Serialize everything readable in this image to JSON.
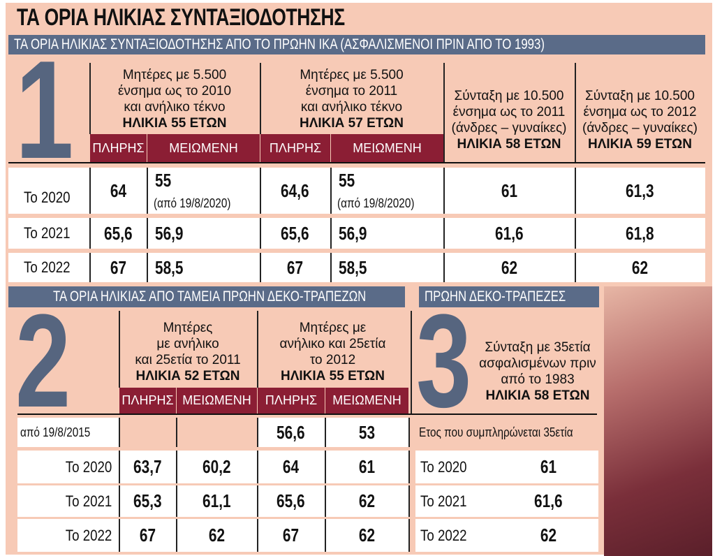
{
  "title": "ΤΑ ΟΡΙΑ ΗΛΙΚΙΑΣ ΣΥΝΤΑΞΙΟΔΟΤΗΣΗΣ",
  "colors": {
    "background": "#f7cab6",
    "bar": "#5a6b88",
    "accent": "#8b1e34",
    "numeral": "#56657f"
  },
  "s1": {
    "banner": "ΤΑ ΟΡΙΑ ΗΛΙΚΙΑΣ ΣΥΝΤΑΞΙΟΔΟΤΗΣΗΣ ΑΠΟ ΤΟ ΠΡΩΗΝ ΙΚΑ (ΑΣΦΑΛΙΣΜΕΝΟΙ ΠΡΙΝ ΑΠΟ ΤΟ 1993)",
    "numeral": "1",
    "groups": [
      {
        "l1": "Μητέρες με 5.500",
        "l2": "ένσημα ως το 2010",
        "l3": "και ανήλικο τέκνο",
        "age": "ΗΛΙΚΙΑ 55 ΕΤΩΝ"
      },
      {
        "l1": "Μητέρες με 5.500",
        "l2": "ένσημα το 2011",
        "l3": "και ανήλικο τέκνο",
        "age": "ΗΛΙΚΙΑ 57 ΕΤΩΝ"
      },
      {
        "l1": "Σύνταξη με 10.500",
        "l2": "ένσημα ως το 2011",
        "l3": "(άνδρες – γυναίκες)",
        "age": "ΗΛΙΚΙΑ 58 ΕΤΩΝ"
      },
      {
        "l1": "Σύνταξη με 10.500",
        "l2": "ένσημα ως το 2012",
        "l3": "(άνδρες – γυναίκες)",
        "age": "ΗΛΙΚΙΑ 59 ΕΤΩΝ"
      }
    ],
    "sub": [
      "ΠΛΗΡΗΣ",
      "ΜΕΙΩΜΕΝΗ",
      "ΠΛΗΡΗΣ",
      "ΜΕΙΩΜΕΝΗ"
    ],
    "rows": [
      {
        "label": "Το 2020",
        "v": [
          "64",
          "55",
          "64,6",
          "55",
          "61",
          "61,3"
        ],
        "note": "(από 19/8/2020)"
      },
      {
        "label": "Το 2021",
        "v": [
          "65,6",
          "56,9",
          "65,6",
          "56,9",
          "61,6",
          "61,8"
        ]
      },
      {
        "label": "Το 2022",
        "v": [
          "67",
          "58,5",
          "67",
          "58,5",
          "62",
          "62"
        ]
      }
    ]
  },
  "s2": {
    "banner": "ΤΑ ΟΡΙΑ ΗΛΙΚΙΑΣ ΑΠΟ ΤΑΜΕΙΑ ΠΡΩΗΝ ΔΕΚΟ-ΤΡΑΠΕΖΩΝ",
    "numeral": "2",
    "groups": [
      {
        "l1": "Μητέρες",
        "l2": "με ανήλικο",
        "l3": "και 25ετία το 2011",
        "age": "ΗΛΙΚΙΑ 52 ΕΤΩΝ"
      },
      {
        "l1": "Μητέρες με",
        "l2": "ανήλικο και 25ετία",
        "l3": "το 2012",
        "age": "ΗΛΙΚΙΑ 55 ΕΤΩΝ"
      }
    ],
    "sub": [
      "ΠΛΗΡΗΣ",
      "ΜΕΙΩΜΕΝΗ",
      "ΠΛΗΡΗΣ",
      "ΜΕΙΩΜΕΝΗ"
    ],
    "rows": [
      {
        "label": "από 19/8/2015",
        "v": [
          "",
          "",
          "56,6",
          "53"
        ]
      },
      {
        "label": "Το 2020",
        "v": [
          "63,7",
          "60,2",
          "64",
          "61"
        ]
      },
      {
        "label": "Το 2021",
        "v": [
          "65,3",
          "61,1",
          "65,6",
          "62"
        ]
      },
      {
        "label": "Το 2022",
        "v": [
          "67",
          "62",
          "67",
          "62"
        ]
      }
    ]
  },
  "s3": {
    "banner": "ΠΡΩΗΝ ΔΕΚΟ-ΤΡΑΠΕΖΕΣ",
    "numeral": "3",
    "l1": "Σύνταξη με 35ετία",
    "l2": "ασφαλισμένων πριν",
    "l3": "από το 1983",
    "age": "ΗΛΙΚΙΑ 58 ΕΤΩΝ",
    "caption": "Ετος που συμπληρώνεται 35ετία",
    "rows": [
      {
        "label": "Το 2020",
        "v": "61"
      },
      {
        "label": "Το 2021",
        "v": "61,6"
      },
      {
        "label": "Το 2022",
        "v": "62"
      }
    ]
  }
}
